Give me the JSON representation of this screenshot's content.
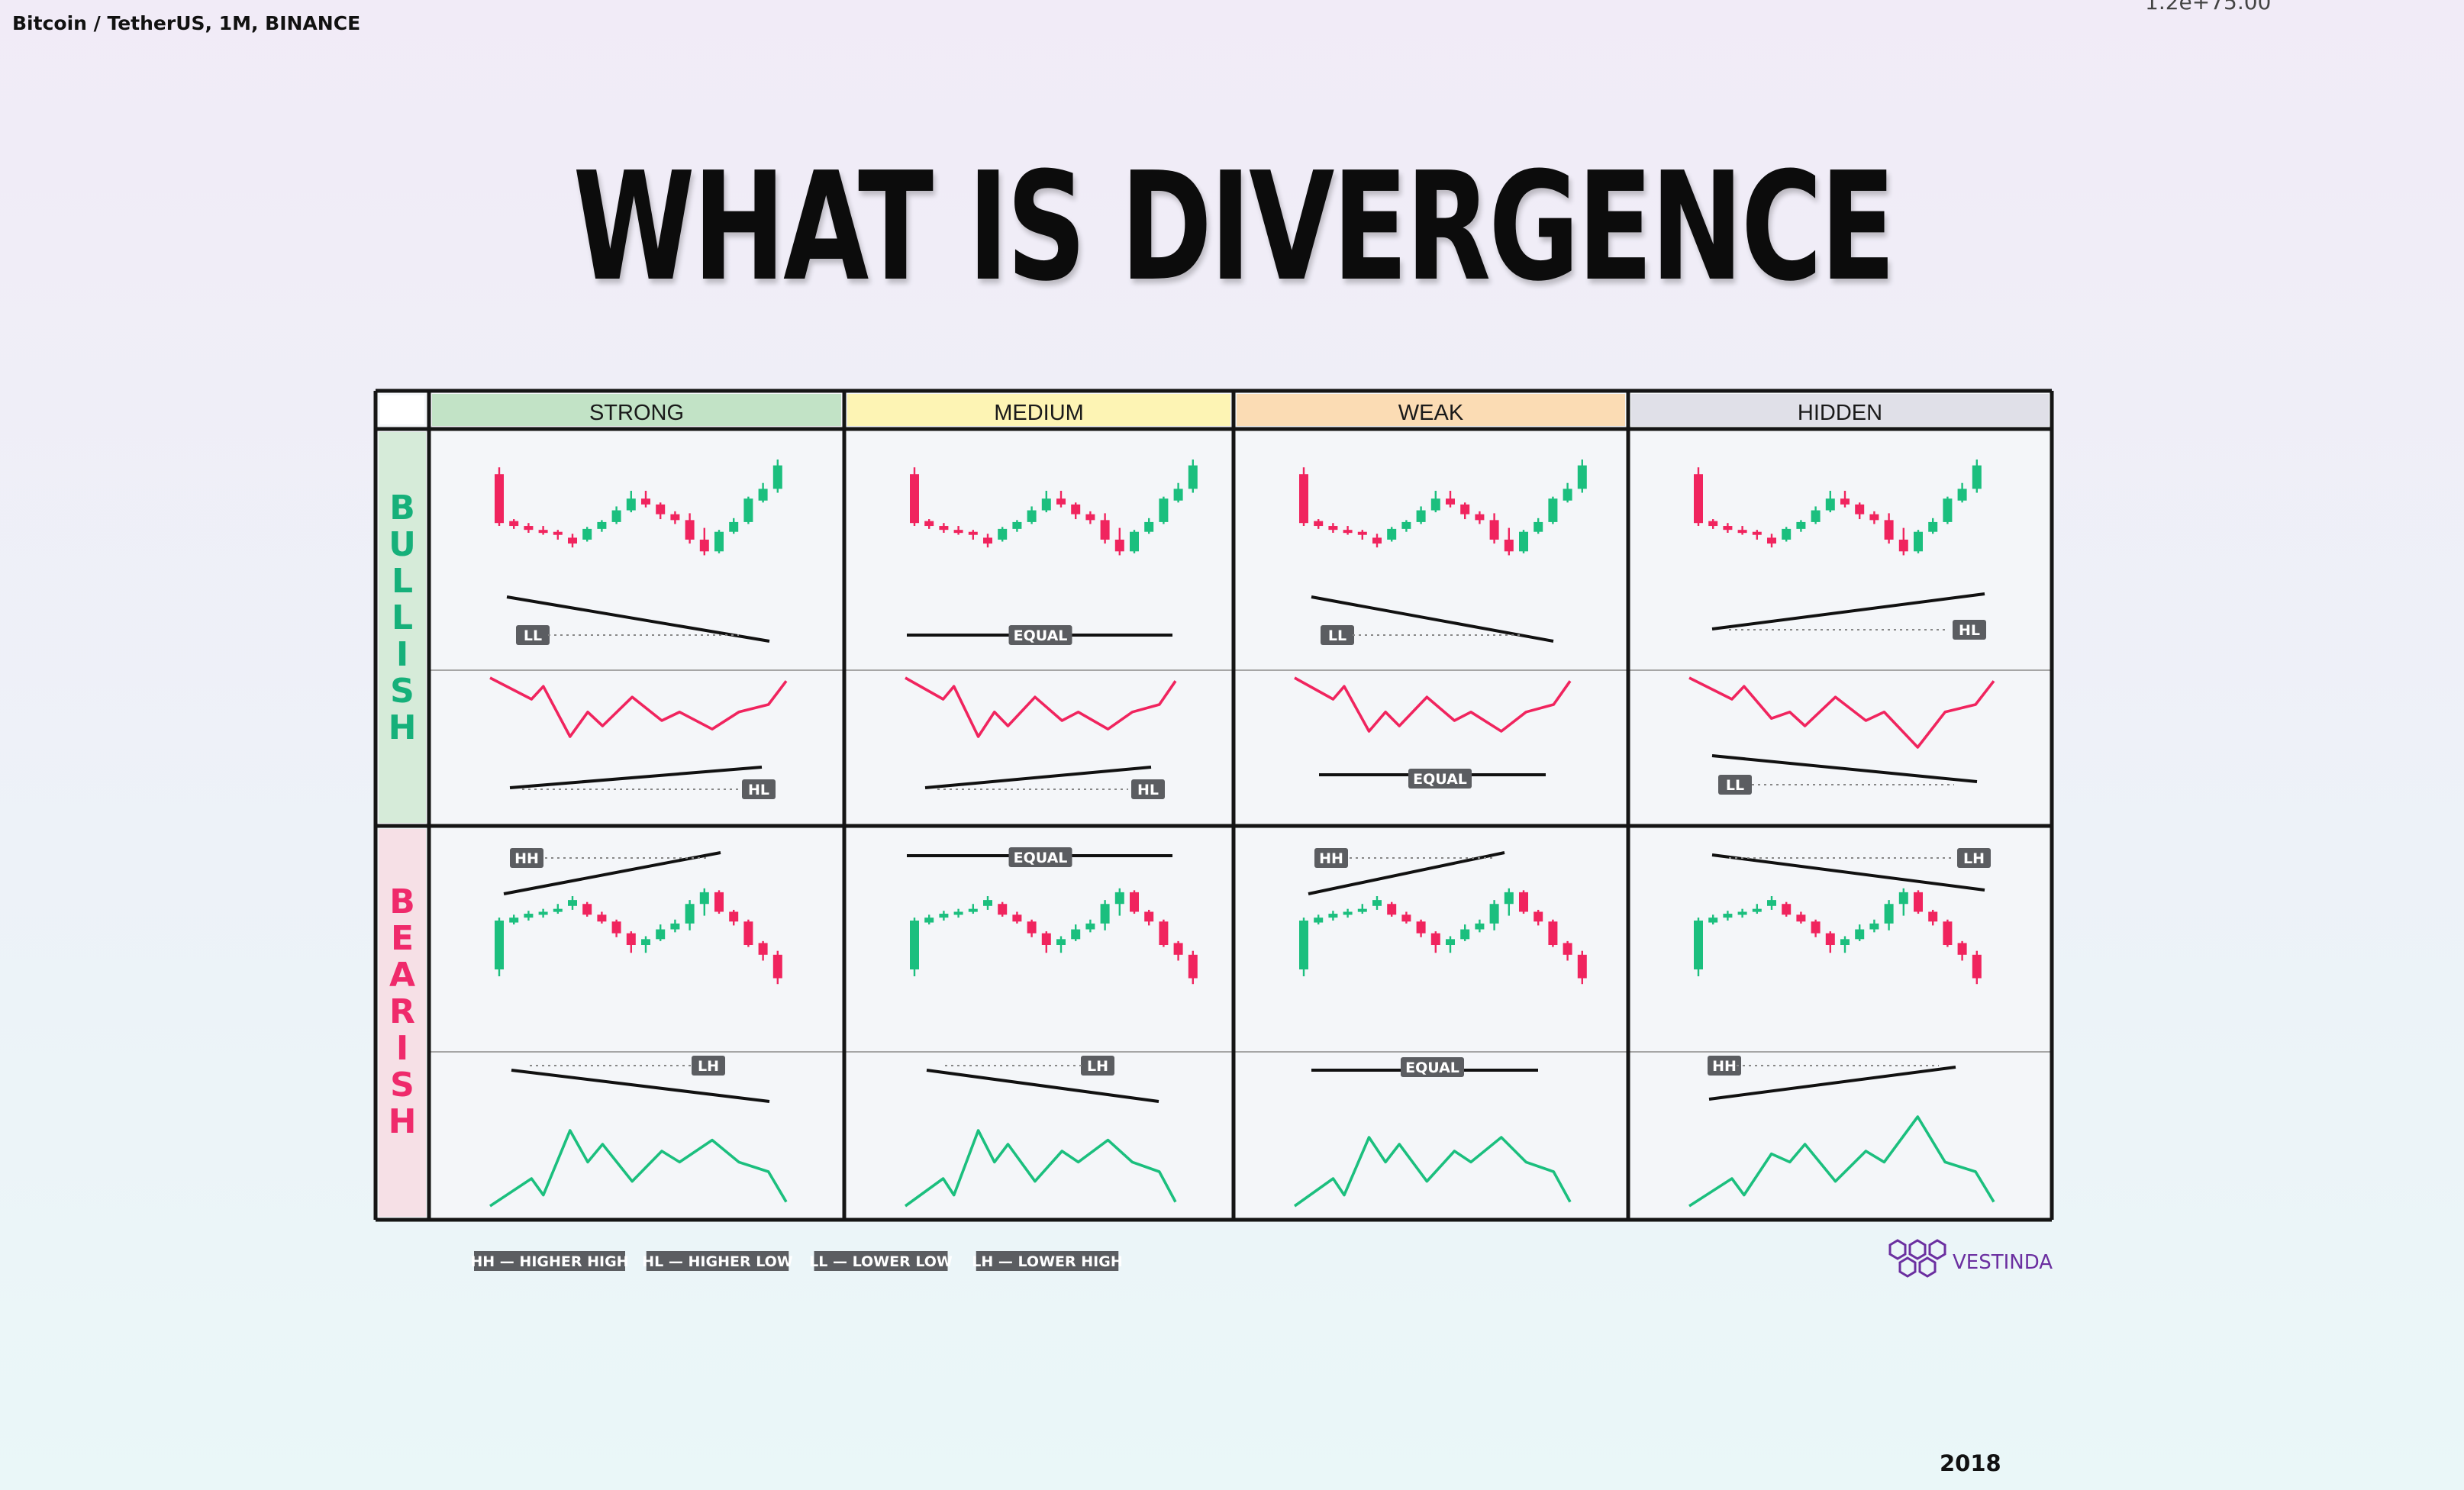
{
  "header": {
    "symbol": "Bitcoin / TetherUS, 1M, BINANCE",
    "scale_readout": "1.2e+75.00",
    "year": "2018"
  },
  "title": "WHAT IS DIVERGENCE",
  "columns": [
    {
      "label": "STRONG",
      "color": "#c2e3c6"
    },
    {
      "label": "MEDIUM",
      "color": "#fdf4b4"
    },
    {
      "label": "WEAK",
      "color": "#fbdcb4"
    },
    {
      "label": "HIDDEN",
      "color": "#e0e0e8"
    }
  ],
  "rows": [
    {
      "label": "BULLISH",
      "color": "#16b07a",
      "bg": "#d6ebd9"
    },
    {
      "label": "BEARISH",
      "color": "#ef2a6b",
      "bg": "#f6e0e6"
    }
  ],
  "badges": {
    "bullish_price": [
      "LL",
      "EQUAL",
      "LL",
      "HL"
    ],
    "bullish_indicator": [
      "HL",
      "HL",
      "EQUAL",
      "LL"
    ],
    "bearish_price": [
      "HH",
      "EQUAL",
      "HH",
      "LH"
    ],
    "bearish_indicator": [
      "LH",
      "LH",
      "EQUAL",
      "HH"
    ]
  },
  "legend": [
    "HH — HIGHER HIGH",
    "HL — HIGHER LOW",
    "LL — LOWER LOW",
    "LH — LOWER HIGH"
  ],
  "brand": {
    "name": "VESTINDA",
    "color": "#6b2fa0"
  },
  "colors": {
    "up_candle": "#1bbf7e",
    "down_candle": "#f0245e",
    "grid_line": "#151515",
    "cell_bg": "#f4f6f9",
    "badge_bg": "#5b5d61"
  }
}
